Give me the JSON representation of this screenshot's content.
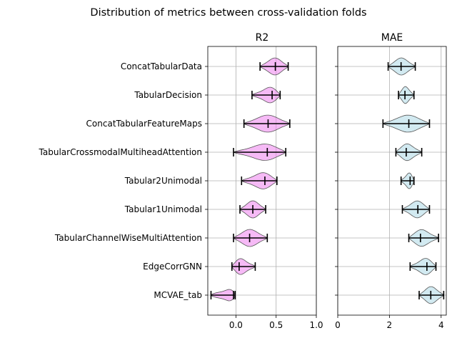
{
  "chart_data": {
    "type": "violin",
    "suptitle": "Distribution of metrics between cross-validation folds",
    "categories": [
      "ConcatTabularData",
      "TabularDecision",
      "ConcatTabularFeatureMaps",
      "TabularCrossmodalMultiheadAttention",
      "Tabular2Unimodal",
      "Tabular1Unimodal",
      "TabularChannelWiseMultiAttention",
      "EdgeCorrGNN",
      "MCVAE_tab"
    ],
    "panels": [
      {
        "title": "R2",
        "color": "#ee82ee",
        "xlim": [
          -0.35,
          1.0
        ],
        "xticks": [
          0.0,
          0.5,
          1.0
        ],
        "xtick_labels": [
          "0.0",
          "0.5",
          "1.0"
        ],
        "grid": true,
        "series": [
          {
            "min": 0.3,
            "median": 0.49,
            "max": 0.65
          },
          {
            "min": 0.2,
            "median": 0.45,
            "max": 0.55
          },
          {
            "min": 0.1,
            "median": 0.4,
            "max": 0.67
          },
          {
            "min": -0.03,
            "median": 0.39,
            "max": 0.62
          },
          {
            "min": 0.07,
            "median": 0.36,
            "max": 0.51
          },
          {
            "min": 0.05,
            "median": 0.21,
            "max": 0.37
          },
          {
            "min": -0.03,
            "median": 0.17,
            "max": 0.39
          },
          {
            "min": -0.05,
            "median": 0.04,
            "max": 0.24
          },
          {
            "min": -0.31,
            "median": -0.03,
            "max": -0.01
          }
        ]
      },
      {
        "title": "MAE",
        "color": "#add8e6",
        "xlim": [
          0.0,
          4.2
        ],
        "xticks": [
          0,
          2,
          4
        ],
        "xtick_labels": [
          "0",
          "2",
          "4"
        ],
        "grid": true,
        "series": [
          {
            "min": 1.95,
            "median": 2.45,
            "max": 3.0
          },
          {
            "min": 2.35,
            "median": 2.6,
            "max": 2.95
          },
          {
            "min": 1.75,
            "median": 2.75,
            "max": 3.55
          },
          {
            "min": 2.25,
            "median": 2.65,
            "max": 3.25
          },
          {
            "min": 2.45,
            "median": 2.8,
            "max": 2.95
          },
          {
            "min": 2.5,
            "median": 3.1,
            "max": 3.55
          },
          {
            "min": 2.75,
            "median": 3.2,
            "max": 3.9
          },
          {
            "min": 2.8,
            "median": 3.45,
            "max": 3.8
          },
          {
            "min": 3.15,
            "median": 3.6,
            "max": 4.1
          }
        ]
      }
    ]
  }
}
